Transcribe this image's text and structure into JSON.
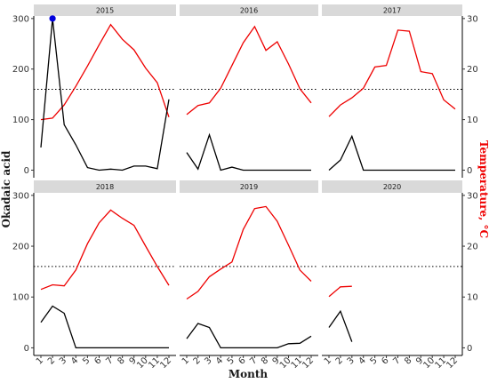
{
  "chart_data": {
    "type": "line",
    "facet_by": "year",
    "facets": [
      "2015",
      "2016",
      "2017",
      "2018",
      "2019",
      "2020"
    ],
    "xlabel": "Month",
    "ylabel_left": "Okadaic acid",
    "ylabel_right": "Temperature, °C",
    "x_ticks": [
      1,
      2,
      3,
      4,
      5,
      6,
      7,
      8,
      9,
      10,
      11,
      12
    ],
    "y_left_ticks": [
      0,
      100,
      200,
      300
    ],
    "y_right_ticks": [
      0,
      10,
      20,
      30
    ],
    "y_left_lim": [
      -15,
      305
    ],
    "y_right_lim": [
      -1.5,
      30.5
    ],
    "threshold": {
      "value": 160,
      "style": "dotted"
    },
    "highlight_point": {
      "year": "2015",
      "month": 2,
      "value": 300,
      "color": "#0000dd"
    },
    "colors": {
      "okadaic": "#000000",
      "temperature": "#ee0000",
      "strip": "#d9d9d9"
    },
    "series": [
      {
        "year": "2015",
        "okadaic": [
          [
            1,
            45
          ],
          [
            2,
            300
          ],
          [
            3,
            90
          ],
          [
            4,
            50
          ],
          [
            5,
            5
          ],
          [
            6,
            0
          ],
          [
            7,
            2
          ],
          [
            8,
            0
          ],
          [
            9,
            8
          ],
          [
            10,
            8
          ],
          [
            11,
            3
          ],
          [
            12,
            140
          ]
        ],
        "temperature": [
          [
            1,
            10
          ],
          [
            2,
            10.3
          ],
          [
            3,
            12.9
          ],
          [
            4,
            16.6
          ],
          [
            5,
            20.6
          ],
          [
            6,
            24.8
          ],
          [
            7,
            28.8
          ],
          [
            8,
            25.9
          ],
          [
            9,
            23.8
          ],
          [
            10,
            20.2
          ],
          [
            11,
            17.3
          ],
          [
            12,
            10.5
          ]
        ]
      },
      {
        "year": "2016",
        "okadaic": [
          [
            1,
            35
          ],
          [
            2,
            2
          ],
          [
            3,
            70
          ],
          [
            4,
            0
          ],
          [
            5,
            6
          ],
          [
            6,
            0
          ],
          [
            7,
            0
          ],
          [
            8,
            0
          ],
          [
            9,
            0
          ],
          [
            10,
            0
          ],
          [
            11,
            0
          ],
          [
            12,
            0
          ]
        ],
        "temperature": [
          [
            1,
            11
          ],
          [
            2,
            12.8
          ],
          [
            3,
            13.3
          ],
          [
            4,
            16.2
          ],
          [
            5,
            20.7
          ],
          [
            6,
            25.2
          ],
          [
            7,
            28.4
          ],
          [
            8,
            23.7
          ],
          [
            9,
            25.4
          ],
          [
            10,
            21
          ],
          [
            11,
            16.1
          ],
          [
            12,
            13.3
          ]
        ]
      },
      {
        "year": "2017",
        "okadaic": [
          [
            1,
            0
          ],
          [
            2,
            20
          ],
          [
            3,
            67
          ],
          [
            4,
            0
          ],
          [
            5,
            0
          ],
          [
            6,
            0
          ],
          [
            7,
            0
          ],
          [
            8,
            0
          ],
          [
            9,
            0
          ],
          [
            10,
            0
          ],
          [
            11,
            0
          ],
          [
            12,
            0
          ]
        ],
        "temperature": [
          [
            1,
            10.6
          ],
          [
            2,
            12.9
          ],
          [
            3,
            14.3
          ],
          [
            4,
            16.2
          ],
          [
            5,
            20.4
          ],
          [
            6,
            20.7
          ],
          [
            7,
            27.7
          ],
          [
            8,
            27.5
          ],
          [
            9,
            19.5
          ],
          [
            10,
            19.1
          ],
          [
            11,
            13.9
          ],
          [
            12,
            12.1
          ]
        ]
      },
      {
        "year": "2018",
        "okadaic": [
          [
            1,
            50
          ],
          [
            2,
            82
          ],
          [
            3,
            68
          ],
          [
            4,
            0
          ],
          [
            5,
            0
          ],
          [
            6,
            0
          ],
          [
            7,
            0
          ],
          [
            8,
            0
          ],
          [
            9,
            0
          ],
          [
            10,
            0
          ],
          [
            11,
            0
          ],
          [
            12,
            0
          ]
        ],
        "temperature": [
          [
            1,
            11.5
          ],
          [
            2,
            12.4
          ],
          [
            3,
            12.2
          ],
          [
            4,
            15.3
          ],
          [
            5,
            20.5
          ],
          [
            6,
            24.6
          ],
          [
            7,
            27.1
          ],
          [
            8,
            25.5
          ],
          [
            9,
            24.1
          ],
          [
            10,
            20
          ],
          [
            11,
            16
          ],
          [
            12,
            12.3
          ]
        ]
      },
      {
        "year": "2019",
        "okadaic": [
          [
            1,
            18
          ],
          [
            2,
            48
          ],
          [
            3,
            40
          ],
          [
            4,
            0
          ],
          [
            5,
            0
          ],
          [
            6,
            0
          ],
          [
            7,
            0
          ],
          [
            8,
            0
          ],
          [
            9,
            0
          ],
          [
            10,
            8
          ],
          [
            11,
            9
          ],
          [
            12,
            23
          ]
        ],
        "temperature": [
          [
            1,
            9.6
          ],
          [
            2,
            11.1
          ],
          [
            3,
            14
          ],
          [
            4,
            15.5
          ],
          [
            5,
            16.9
          ],
          [
            6,
            23.3
          ],
          [
            7,
            27.4
          ],
          [
            8,
            27.8
          ],
          [
            9,
            24.9
          ],
          [
            10,
            20.2
          ],
          [
            11,
            15.3
          ],
          [
            12,
            13.1
          ]
        ]
      },
      {
        "year": "2020",
        "okadaic": [
          [
            1,
            40
          ],
          [
            2,
            72
          ],
          [
            3,
            12
          ]
        ],
        "temperature": [
          [
            1,
            10.1
          ],
          [
            2,
            12
          ],
          [
            3,
            12.1
          ]
        ]
      }
    ]
  }
}
